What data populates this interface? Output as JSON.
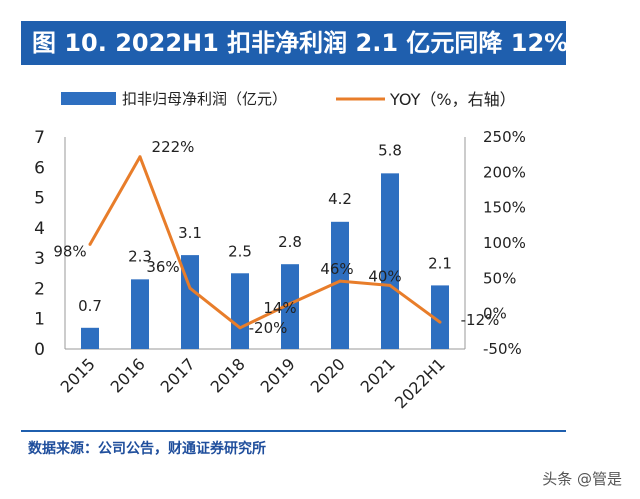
{
  "title": "图 10. 2022H1 扣非净利润 2.1 亿元同降 12%",
  "source": "数据来源：公司公告，财通证券研究所",
  "watermark": "头条 @管是",
  "colors": {
    "bar": "#2e6fc0",
    "line": "#e87d2a",
    "title_bg": "#1f5fae",
    "title_text": "#ffffff"
  },
  "chart_data": {
    "type": "bar+line",
    "categories": [
      "2015",
      "2016",
      "2017",
      "2018",
      "2019",
      "2020",
      "2021",
      "2022H1"
    ],
    "series": [
      {
        "name": "扣非归母净利润（亿元）",
        "type": "bar",
        "axis": "left",
        "values": [
          0.7,
          2.3,
          3.1,
          2.5,
          2.8,
          4.2,
          5.8,
          2.1
        ],
        "labels": [
          "0.7",
          "2.3",
          "3.1",
          "2.5",
          "2.8",
          "4.2",
          "5.8",
          "2.1"
        ]
      },
      {
        "name": "YOY（%，右轴）",
        "type": "line",
        "axis": "right",
        "values": [
          98,
          222,
          36,
          -20,
          14,
          46,
          40,
          -12
        ],
        "labels": [
          "98%",
          "222%",
          "36%",
          "-20%",
          "14%",
          "46%",
          "40%",
          "-12%"
        ]
      }
    ],
    "left_axis": {
      "min": 0,
      "max": 7,
      "ticks": [
        "0",
        "1",
        "2",
        "3",
        "4",
        "5",
        "6",
        "7"
      ]
    },
    "right_axis": {
      "min": -50,
      "max": 250,
      "ticks": [
        "-50%",
        "0%",
        "50%",
        "100%",
        "150%",
        "200%",
        "250%"
      ]
    },
    "legend_position": "top",
    "grid": false
  }
}
